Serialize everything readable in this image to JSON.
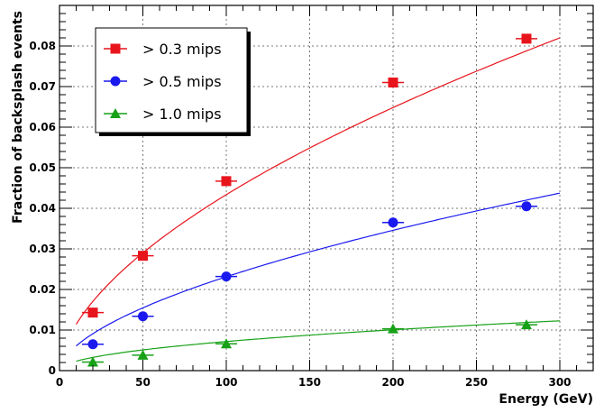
{
  "chart_data": {
    "type": "scatter",
    "title": "",
    "xlabel": "Energy (GeV)",
    "ylabel": "Fraction of backsplash events",
    "xlim": [
      0,
      320
    ],
    "ylim": [
      0,
      0.09
    ],
    "xticks": [
      0,
      50,
      100,
      150,
      200,
      250,
      300
    ],
    "yticks": [
      0,
      0.01,
      0.02,
      0.03,
      0.04,
      0.05,
      0.06,
      0.07,
      0.08
    ],
    "ytick_labels": [
      "0",
      "0.01",
      "0.02",
      "0.03",
      "0.04",
      "0.05",
      "0.06",
      "0.07",
      "0.08"
    ],
    "grid": true,
    "legend_position": "top-left",
    "x": [
      20,
      50,
      100,
      200,
      280
    ],
    "series": [
      {
        "name": "> 0.3 mips",
        "color": "#e8141c",
        "marker": "square",
        "values": [
          0.0143,
          0.0283,
          0.0467,
          0.071,
          0.0818
        ],
        "fit": {
          "form": "a*E^b",
          "a": 0.003,
          "b": 0.58,
          "xrange": [
            10,
            300
          ]
        }
      },
      {
        "name": "> 0.5 mips",
        "color": "#1a1aee",
        "marker": "circle",
        "values": [
          0.0065,
          0.0134,
          0.0232,
          0.0365,
          0.0405
        ],
        "fit": {
          "form": "a*E^b",
          "a": 0.0016,
          "b": 0.58,
          "xrange": [
            10,
            300
          ]
        }
      },
      {
        "name": "> 1.0 mips",
        "color": "#17a117",
        "marker": "triangle",
        "values": [
          0.0021,
          0.0038,
          0.0066,
          0.0103,
          0.0113
        ],
        "fit": {
          "form": "a*E^b",
          "a": 0.00075,
          "b": 0.49,
          "xrange": [
            10,
            300
          ]
        }
      }
    ]
  }
}
